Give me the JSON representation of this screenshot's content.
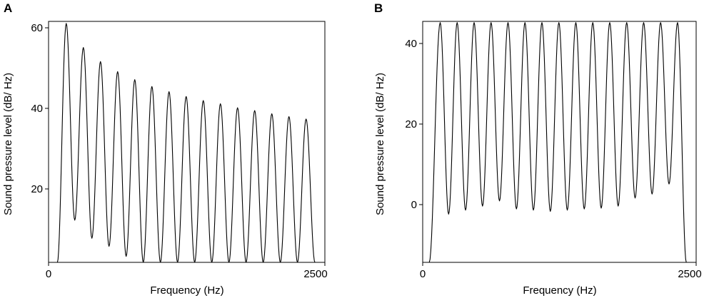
{
  "chart_data": [
    {
      "panel_label": "A",
      "type": "line",
      "title": "",
      "xlabel": "Frequency (Hz)",
      "ylabel": "Sound pressure level (dB/ Hz)",
      "xlim": [
        0,
        2500
      ],
      "ylim": [
        2,
        62
      ],
      "xticks": [
        0,
        2500
      ],
      "yticks": [
        20,
        40,
        60
      ],
      "grid": false,
      "legend": "none",
      "harmonic_spacing_hz": 155,
      "series": [
        {
          "peaks": {
            "x": [
              160,
              315,
              470,
              625,
              780,
              935,
              1090,
              1245,
              1400,
              1555,
              1710,
              1865,
              2020,
              2175,
              2330
            ],
            "y": [
              61.5,
              55.5,
              52,
              49.5,
              47.5,
              45.8,
              44.5,
              43.3,
              42.3,
              41.5,
              40.5,
              39.8,
              39,
              38.3,
              37.7
            ]
          },
          "troughs": {
            "x": [
              80,
              237,
              392,
              547,
              702,
              857,
              1012,
              1167,
              1322,
              1477,
              1632,
              1787,
              1942,
              2097,
              2252,
              2410
            ],
            "y": [
              2,
              12.5,
              8,
              6,
              3.5,
              2,
              2,
              2,
              2,
              2,
              2,
              2,
              2,
              2,
              2,
              2
            ]
          }
        }
      ]
    },
    {
      "panel_label": "B",
      "type": "line",
      "title": "",
      "xlabel": "Frequency (Hz)",
      "ylabel": "Sound pressure level (dB/ Hz)",
      "xlim": [
        0,
        2500
      ],
      "ylim": [
        -14.5,
        45.5
      ],
      "xticks": [
        0,
        2500
      ],
      "yticks": [
        0,
        20,
        40
      ],
      "grid": false,
      "legend": "none",
      "harmonic_spacing_hz": 155,
      "series": [
        {
          "peaks": {
            "x": [
              160,
              315,
              470,
              625,
              780,
              935,
              1090,
              1245,
              1400,
              1555,
              1710,
              1865,
              2020,
              2175,
              2330
            ],
            "y": [
              45.2,
              45.2,
              45.2,
              45.2,
              45.2,
              45.2,
              45.2,
              45.2,
              45.2,
              45.2,
              45.2,
              45.2,
              45.2,
              45.2,
              45.2
            ]
          },
          "troughs": {
            "x": [
              60,
              237,
              392,
              547,
              702,
              857,
              1012,
              1167,
              1322,
              1477,
              1632,
              1787,
              1942,
              2097,
              2252,
              2410
            ],
            "y": [
              -14.5,
              -2.5,
              -1.5,
              -0.5,
              0.8,
              -1.2,
              -1.5,
              -1.8,
              -1.5,
              -1.2,
              -1.0,
              -0.5,
              1.5,
              2.5,
              5,
              -14.5
            ]
          }
        }
      ]
    }
  ]
}
